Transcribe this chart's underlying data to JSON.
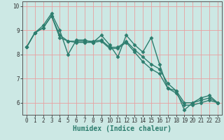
{
  "title": "",
  "xlabel": "Humidex (Indice chaleur)",
  "ylabel": "",
  "bg_color": "#cce8e4",
  "line_color": "#2d7d6e",
  "grid_color": "#e8a0a0",
  "series": [
    {
      "x": [
        0,
        1,
        2,
        3,
        4,
        5,
        6,
        7,
        8,
        9,
        10,
        11,
        12,
        13,
        14,
        15,
        16,
        17,
        18,
        19,
        20,
        21,
        22,
        23
      ],
      "y": [
        8.3,
        8.9,
        9.2,
        9.7,
        9.0,
        8.0,
        8.6,
        8.6,
        8.5,
        8.8,
        8.4,
        7.9,
        8.8,
        8.4,
        8.1,
        8.7,
        7.6,
        6.6,
        6.5,
        5.7,
        6.0,
        6.2,
        6.3,
        6.0
      ]
    },
    {
      "x": [
        0,
        1,
        2,
        3,
        4,
        5,
        6,
        7,
        8,
        9,
        10,
        11,
        12,
        13,
        14,
        15,
        16,
        17,
        18,
        19,
        20,
        21,
        22,
        23
      ],
      "y": [
        8.3,
        8.9,
        9.1,
        9.6,
        8.8,
        8.55,
        8.55,
        8.55,
        8.55,
        8.6,
        8.3,
        8.3,
        8.55,
        8.2,
        7.9,
        7.6,
        7.4,
        6.8,
        6.5,
        6.0,
        6.0,
        6.1,
        6.2,
        6.0
      ]
    },
    {
      "x": [
        0,
        1,
        2,
        3,
        4,
        5,
        6,
        7,
        8,
        9,
        10,
        11,
        12,
        13,
        14,
        15,
        16,
        17,
        18,
        19,
        20,
        21,
        22,
        23
      ],
      "y": [
        8.3,
        8.9,
        9.1,
        9.6,
        8.7,
        8.55,
        8.5,
        8.5,
        8.5,
        8.55,
        8.25,
        8.25,
        8.5,
        8.1,
        7.7,
        7.4,
        7.2,
        6.6,
        6.4,
        5.9,
        5.9,
        6.0,
        6.1,
        6.0
      ]
    }
  ],
  "ylim": [
    5.5,
    10.2
  ],
  "xlim": [
    -0.5,
    23.5
  ],
  "yticks": [
    6,
    7,
    8,
    9,
    10
  ],
  "xticks": [
    0,
    1,
    2,
    3,
    4,
    5,
    6,
    7,
    8,
    9,
    10,
    11,
    12,
    13,
    14,
    15,
    16,
    17,
    18,
    19,
    20,
    21,
    22,
    23
  ],
  "marker": "D",
  "markersize": 2.5,
  "linewidth": 1.0,
  "xlabel_fontsize": 7,
  "tick_fontsize": 5.5
}
